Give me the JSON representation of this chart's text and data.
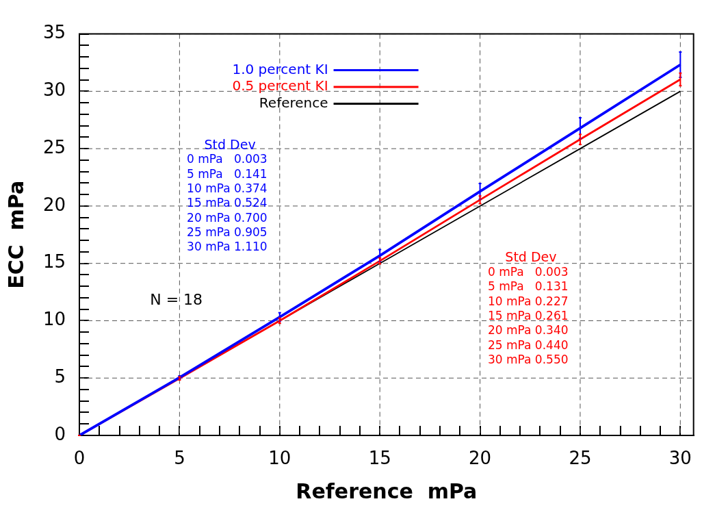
{
  "chart_data": {
    "type": "line",
    "xlabel": "Reference  mPa",
    "ylabel": "ECC  mPa",
    "x": [
      0,
      5,
      10,
      15,
      20,
      25,
      30
    ],
    "series": [
      {
        "name": "1.0 percent KI",
        "color": "#0000ff",
        "values": [
          0,
          5.05,
          10.32,
          15.68,
          21.27,
          26.79,
          32.32
        ],
        "errors": [
          0.003,
          0.141,
          0.374,
          0.524,
          0.7,
          0.905,
          1.11
        ]
      },
      {
        "name": "0.5 percent KI",
        "color": "#ff0000",
        "values": [
          0,
          4.97,
          10.0,
          15.21,
          20.54,
          25.81,
          31.04
        ],
        "errors": [
          0.003,
          0.131,
          0.227,
          0.261,
          0.34,
          0.44,
          0.55
        ]
      },
      {
        "name": "Reference",
        "color": "#000000",
        "values": [
          0,
          5,
          10,
          15,
          20,
          25,
          30
        ]
      }
    ],
    "xlim": [
      0,
      30.66
    ],
    "xticks": [
      0,
      {
        "value": 1,
        "label": null
      },
      {
        "value": 2,
        "label": null
      },
      {
        "value": 3,
        "label": null
      },
      {
        "value": 4,
        "label": null
      },
      5,
      {
        "value": 6,
        "label": null
      },
      {
        "value": 7,
        "label": null
      },
      {
        "value": 8,
        "label": null
      },
      {
        "value": 9,
        "label": null
      },
      10,
      {
        "value": 11,
        "label": null
      },
      {
        "value": 12,
        "label": null
      },
      {
        "value": 13,
        "label": null
      },
      {
        "value": 14,
        "label": null
      },
      15,
      {
        "value": 16,
        "label": null
      },
      {
        "value": 17,
        "label": null
      },
      {
        "value": 18,
        "label": null
      },
      {
        "value": 19,
        "label": null
      },
      20,
      {
        "value": 21,
        "label": null
      },
      {
        "value": 22,
        "label": null
      },
      {
        "value": 23,
        "label": null
      },
      {
        "value": 24,
        "label": null
      },
      25,
      {
        "value": 26,
        "label": null
      },
      {
        "value": 27,
        "label": null
      },
      {
        "value": 28,
        "label": null
      },
      {
        "value": 29,
        "label": null
      },
      30
    ],
    "ylim": [
      0,
      35
    ],
    "yticks": [
      0,
      {
        "value": 1,
        "label": null
      },
      {
        "value": 2,
        "label": null
      },
      {
        "value": 3,
        "label": null
      },
      {
        "value": 4,
        "label": null
      },
      5,
      {
        "value": 6,
        "label": null
      },
      {
        "value": 7,
        "label": null
      },
      {
        "value": 8,
        "label": null
      },
      {
        "value": 9,
        "label": null
      },
      10,
      {
        "value": 11,
        "label": null
      },
      {
        "value": 12,
        "label": null
      },
      {
        "value": 13,
        "label": null
      },
      {
        "value": 14,
        "label": null
      },
      15,
      {
        "value": 16,
        "label": null
      },
      {
        "value": 17,
        "label": null
      },
      {
        "value": 18,
        "label": null
      },
      {
        "value": 19,
        "label": null
      },
      20,
      {
        "value": 21,
        "label": null
      },
      {
        "value": 22,
        "label": null
      },
      {
        "value": 23,
        "label": null
      },
      {
        "value": 24,
        "label": null
      },
      25,
      {
        "value": 26,
        "label": null
      },
      {
        "value": 27,
        "label": null
      },
      {
        "value": 28,
        "label": null
      },
      {
        "value": 29,
        "label": null
      },
      30,
      {
        "value": 31,
        "label": null
      },
      {
        "value": 32,
        "label": null
      },
      {
        "value": 33,
        "label": null
      },
      {
        "value": 34,
        "label": null
      },
      35
    ],
    "grid": true,
    "legend": "top",
    "marker": "none",
    "line_style": "solid",
    "annotations": [
      "Std Dev",
      "0 mPa   0.003",
      "5 mPa   0.141",
      "10 mPa 0.374",
      "15 mPa 0.524",
      "20 mPa 0.700",
      "25 mPa 0.905",
      "30 mPa 1.110",
      "Std Dev",
      "0 mPa   0.003",
      "5 mPa   0.131",
      "10 mPa 0.227",
      "15 mPa 0.261",
      "20 mPa 0.340",
      "25 mPa 0.440",
      "30 mPa 0.550",
      "N = 18"
    ]
  }
}
